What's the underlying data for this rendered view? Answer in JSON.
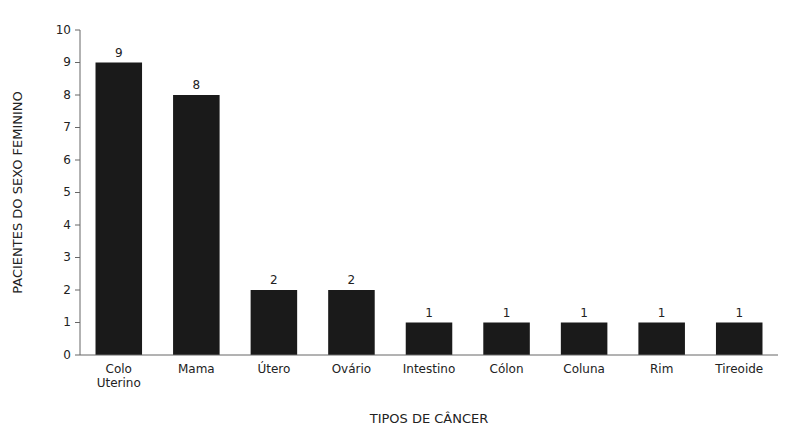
{
  "chart_data": {
    "type": "bar",
    "categories": [
      "Colo\nUterino",
      "Mama",
      "Útero",
      "Ovário",
      "Intestino",
      "Cólon",
      "Coluna",
      "Rim",
      "Tireoide"
    ],
    "values": [
      9,
      8,
      2,
      2,
      1,
      1,
      1,
      1,
      1
    ],
    "color": "#1a1a1a",
    "xlabel": "TIPOS DE CÂNCER",
    "ylabel": "PACIENTES DO SEXO FEMININO",
    "ylim": [
      0,
      10
    ],
    "yticks": [
      0,
      1,
      2,
      3,
      4,
      5,
      6,
      7,
      8,
      9,
      10
    ],
    "grid": false,
    "data_labels": true
  }
}
